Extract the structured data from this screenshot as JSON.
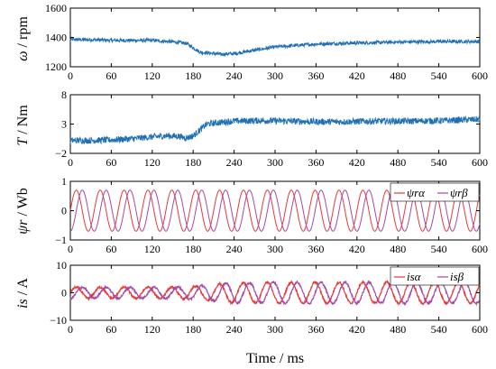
{
  "chart_data": [
    {
      "type": "line",
      "ylabel": "ω / rpm",
      "xlim": [
        0,
        600
      ],
      "ylim": [
        1200,
        1600
      ],
      "x_ticks": [
        0,
        60,
        120,
        180,
        240,
        300,
        360,
        420,
        480,
        540,
        600
      ],
      "x_tick_labels": [
        "0",
        "60",
        "120",
        "180",
        "240",
        "300",
        "360",
        "420",
        "480",
        "540",
        "600"
      ],
      "y_ticks": [
        1200,
        1400,
        1600
      ],
      "y_tick_labels": [
        "1200",
        "1400",
        "1600"
      ],
      "series": [
        {
          "color": "#1f6fb5",
          "x": [
            0,
            30,
            60,
            90,
            120,
            150,
            170,
            180,
            190,
            200,
            210,
            220,
            240,
            260,
            280,
            300,
            330,
            360,
            400,
            450,
            500,
            550,
            600
          ],
          "values": [
            1385,
            1385,
            1380,
            1380,
            1380,
            1370,
            1360,
            1330,
            1300,
            1295,
            1290,
            1285,
            1290,
            1305,
            1320,
            1335,
            1345,
            1355,
            1360,
            1365,
            1370,
            1372,
            1372
          ]
        }
      ]
    },
    {
      "type": "line",
      "ylabel": "T / Nm",
      "xlim": [
        0,
        600
      ],
      "ylim": [
        -2,
        8
      ],
      "x_ticks": [
        0,
        60,
        120,
        180,
        240,
        300,
        360,
        420,
        480,
        540,
        600
      ],
      "x_tick_labels": [
        "0",
        "60",
        "120",
        "180",
        "240",
        "300",
        "360",
        "420",
        "480",
        "540",
        "600"
      ],
      "y_ticks": [
        -2,
        3,
        8
      ],
      "y_tick_labels": [
        "−2",
        "3",
        "8"
      ],
      "series": [
        {
          "color": "#1f6fb5",
          "x": [
            0,
            30,
            60,
            90,
            120,
            140,
            160,
            170,
            180,
            190,
            200,
            220,
            240,
            280,
            320,
            360,
            400,
            450,
            500,
            550,
            600
          ],
          "values": [
            0.2,
            0.2,
            0.3,
            0.5,
            0.8,
            1.0,
            0.9,
            0.6,
            1.0,
            2.0,
            3.0,
            3.3,
            3.5,
            3.6,
            3.5,
            3.4,
            3.4,
            3.5,
            3.5,
            3.6,
            3.8
          ]
        }
      ]
    },
    {
      "type": "line",
      "ylabel": "ψr / Wb",
      "xlim": [
        0,
        600
      ],
      "ylim": [
        -1,
        1
      ],
      "x_ticks": [
        0,
        60,
        120,
        180,
        240,
        300,
        360,
        420,
        480,
        540,
        600
      ],
      "x_tick_labels": [
        "0",
        "60",
        "120",
        "180",
        "240",
        "300",
        "360",
        "420",
        "480",
        "540",
        "600"
      ],
      "y_ticks": [
        -1,
        0,
        1
      ],
      "y_tick_labels": [
        "−1",
        "0",
        "1"
      ],
      "amplitude": 0.7,
      "period_ms": 35,
      "legend": [
        "ψrα",
        "ψrβ"
      ],
      "series": [
        {
          "name": "ψrα",
          "color": "#e8373a",
          "phase_deg": 0
        },
        {
          "name": "ψrβ",
          "color": "#a24aa8",
          "phase_deg": -90
        }
      ]
    },
    {
      "type": "line",
      "ylabel": "is / A",
      "xlabel": "Time / ms",
      "xlim": [
        0,
        600
      ],
      "ylim": [
        -10,
        10
      ],
      "x_ticks": [
        0,
        60,
        120,
        180,
        240,
        300,
        360,
        420,
        480,
        540,
        600
      ],
      "x_tick_labels": [
        "0",
        "60",
        "120",
        "180",
        "240",
        "300",
        "360",
        "420",
        "480",
        "540",
        "600"
      ],
      "y_ticks": [
        -10,
        0,
        10
      ],
      "y_tick_labels": [
        "−10",
        "0",
        "10"
      ],
      "period_ms": 35,
      "amplitude_envelope_x": [
        0,
        150,
        190,
        230,
        300,
        600
      ],
      "amplitude_envelope_y": [
        2.0,
        2.0,
        2.5,
        3.5,
        3.8,
        3.8
      ],
      "legend": [
        "isα",
        "isβ"
      ],
      "series": [
        {
          "name": "isα",
          "color": "#e8373a",
          "phase_deg": 0
        },
        {
          "name": "isβ",
          "color": "#a24aa8",
          "phase_deg": -90
        }
      ]
    }
  ]
}
